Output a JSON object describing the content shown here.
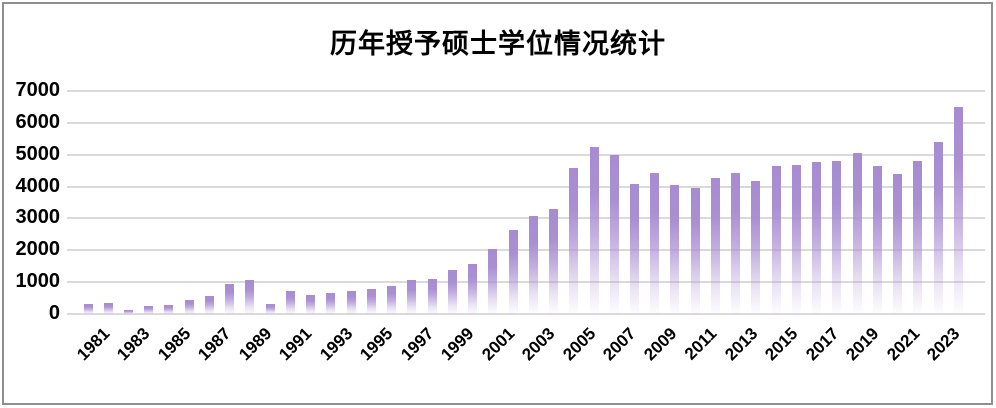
{
  "window": {
    "background_color": "#ffffff",
    "border_color": "#8f8f8f"
  },
  "chart_data": {
    "type": "bar",
    "title": "历年授予硕士学位情况统计",
    "x": [
      1981,
      1982,
      1983,
      1984,
      1985,
      1986,
      1987,
      1988,
      1989,
      1990,
      1991,
      1992,
      1993,
      1994,
      1995,
      1996,
      1997,
      1998,
      1999,
      2000,
      2001,
      2002,
      2003,
      2004,
      2005,
      2006,
      2007,
      2008,
      2009,
      2010,
      2011,
      2012,
      2013,
      2014,
      2015,
      2016,
      2017,
      2018,
      2019,
      2020,
      2021,
      2022,
      2023,
      2024
    ],
    "values": [
      300,
      340,
      130,
      240,
      280,
      450,
      550,
      950,
      1080,
      310,
      710,
      610,
      660,
      730,
      800,
      890,
      1060,
      1090,
      1370,
      1580,
      2030,
      2630,
      3080,
      3290,
      4570,
      5250,
      5000,
      4080,
      4430,
      4040,
      3950,
      4260,
      4420,
      4170,
      4640,
      4690,
      4770,
      4790,
      5050,
      4660,
      4380,
      4800,
      5400,
      6500
    ],
    "xtick_labels": [
      "1981",
      "1983",
      "1985",
      "1987",
      "1989",
      "1991",
      "1993",
      "1995",
      "1997",
      "1999",
      "2001",
      "2003",
      "2005",
      "2007",
      "2009",
      "2011",
      "2013",
      "2015",
      "2017",
      "2019",
      "2021",
      "2023"
    ],
    "xtick_every": 2,
    "yticks": [
      0,
      1000,
      2000,
      3000,
      4000,
      5000,
      6000,
      7000
    ],
    "ylim": [
      0,
      7000
    ],
    "xlabel": "",
    "ylabel": "",
    "grid": true,
    "legend_position": "none",
    "bar_color": "#a78cd1",
    "bar_gradient": "fades to white toward bottom of each bar",
    "gridline_color": "#dadada",
    "text_color": "#000000"
  }
}
